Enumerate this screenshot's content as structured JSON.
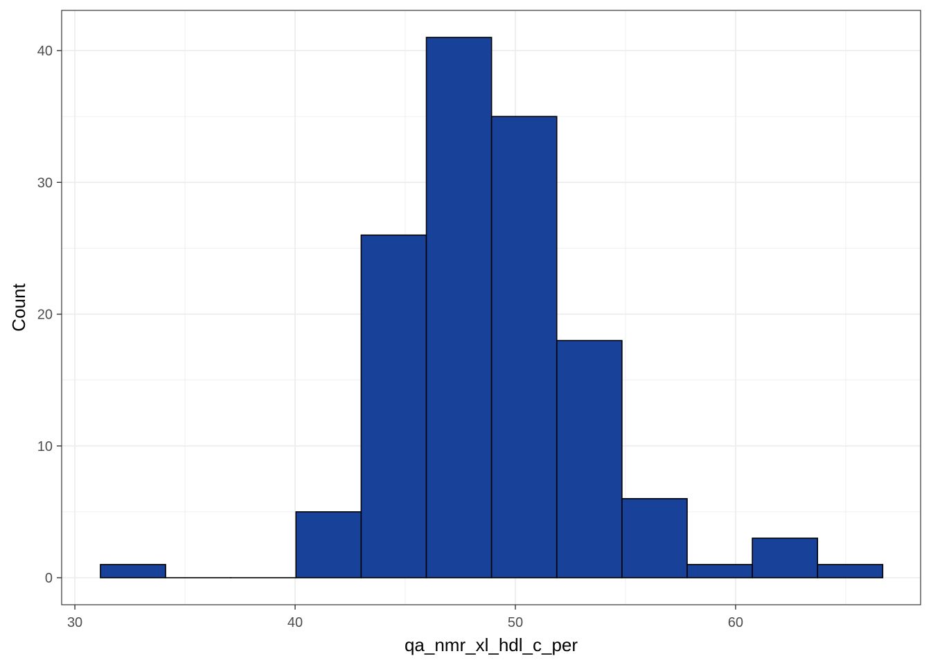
{
  "chart_data": {
    "type": "histogram",
    "title": "",
    "xlabel": "qa_nmr_xl_hdl_c_per",
    "ylabel": "Count",
    "xlim": [
      29.4,
      68.4
    ],
    "ylim": [
      -2.05,
      43.05
    ],
    "x_ticks": [
      30,
      40,
      50,
      60
    ],
    "y_ticks": [
      0,
      10,
      20,
      30,
      40
    ],
    "grid": true,
    "legend": "none",
    "bin_width": 2.96,
    "bins": [
      {
        "x0": 31.16,
        "x1": 34.12,
        "count": 1
      },
      {
        "x0": 34.12,
        "x1": 37.08,
        "count": 0
      },
      {
        "x0": 37.08,
        "x1": 40.04,
        "count": 0
      },
      {
        "x0": 40.04,
        "x1": 43.0,
        "count": 5
      },
      {
        "x0": 43.0,
        "x1": 45.96,
        "count": 26
      },
      {
        "x0": 45.96,
        "x1": 48.92,
        "count": 41
      },
      {
        "x0": 48.92,
        "x1": 51.88,
        "count": 35
      },
      {
        "x0": 51.88,
        "x1": 54.84,
        "count": 18
      },
      {
        "x0": 54.84,
        "x1": 57.8,
        "count": 6
      },
      {
        "x0": 57.8,
        "x1": 60.76,
        "count": 1
      },
      {
        "x0": 60.76,
        "x1": 63.72,
        "count": 3
      },
      {
        "x0": 63.72,
        "x1": 66.68,
        "count": 1
      }
    ],
    "colors": {
      "fill": "#18429A",
      "outline": "#000000",
      "grid": "#ebebeb",
      "panel_border": "#333333"
    }
  }
}
